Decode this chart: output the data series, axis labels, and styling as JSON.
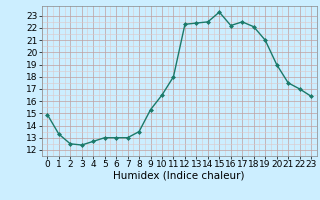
{
  "x": [
    0,
    1,
    2,
    3,
    4,
    5,
    6,
    7,
    8,
    9,
    10,
    11,
    12,
    13,
    14,
    15,
    16,
    17,
    18,
    19,
    20,
    21,
    22,
    23
  ],
  "y": [
    14.9,
    13.3,
    12.5,
    12.4,
    12.7,
    13.0,
    13.0,
    13.0,
    13.5,
    15.3,
    16.5,
    18.0,
    22.3,
    22.4,
    22.5,
    23.3,
    22.2,
    22.5,
    22.1,
    21.0,
    19.0,
    17.5,
    17.0,
    16.4
  ],
  "line_color": "#1a7a6a",
  "marker": "D",
  "marker_size": 2.0,
  "bg_color": "#cceeff",
  "grid_major_color": "#c0a0a0",
  "grid_minor_color": "#ddc8c8",
  "xlabel": "Humidex (Indice chaleur)",
  "ylim": [
    11.5,
    23.8
  ],
  "xlim": [
    -0.5,
    23.5
  ],
  "yticks": [
    12,
    13,
    14,
    15,
    16,
    17,
    18,
    19,
    20,
    21,
    22,
    23
  ],
  "xticks": [
    0,
    1,
    2,
    3,
    4,
    5,
    6,
    7,
    8,
    9,
    10,
    11,
    12,
    13,
    14,
    15,
    16,
    17,
    18,
    19,
    20,
    21,
    22,
    23
  ],
  "tick_fontsize": 6.5,
  "xlabel_fontsize": 7.5
}
